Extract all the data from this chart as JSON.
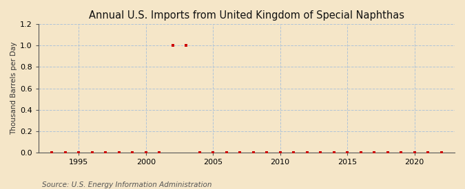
{
  "title": "Annual U.S. Imports from United Kingdom of Special Naphthas",
  "ylabel": "Thousand Barrels per Day",
  "source": "Source: U.S. Energy Information Administration",
  "background_color": "#f5e6c8",
  "plot_background_color": "#f5e6c8",
  "data_color": "#cc0000",
  "years": [
    1993,
    1994,
    1995,
    1996,
    1997,
    1998,
    1999,
    2000,
    2001,
    2002,
    2003,
    2004,
    2005,
    2006,
    2007,
    2008,
    2009,
    2010,
    2011,
    2012,
    2013,
    2014,
    2015,
    2016,
    2017,
    2018,
    2019,
    2020,
    2021,
    2022
  ],
  "values": [
    0.0,
    0.0,
    0.0,
    0.0,
    0.0,
    0.0,
    0.0,
    0.0,
    0.0,
    1.0,
    1.0,
    0.0,
    0.0,
    0.0,
    0.0,
    0.0,
    0.0,
    0.0,
    0.0,
    0.0,
    0.0,
    0.0,
    0.0,
    0.0,
    0.0,
    0.0,
    0.0,
    0.0,
    0.0,
    0.0
  ],
  "xlim": [
    1992,
    2023
  ],
  "ylim": [
    0.0,
    1.2
  ],
  "yticks": [
    0.0,
    0.2,
    0.4,
    0.6,
    0.8,
    1.0,
    1.2
  ],
  "xticks": [
    1995,
    2000,
    2005,
    2010,
    2015,
    2020
  ],
  "grid_color": "#b0c4d8",
  "grid_style": "--",
  "marker": "s",
  "markersize": 3.0,
  "title_fontsize": 10.5,
  "label_fontsize": 7.5,
  "tick_fontsize": 8,
  "source_fontsize": 7.5
}
